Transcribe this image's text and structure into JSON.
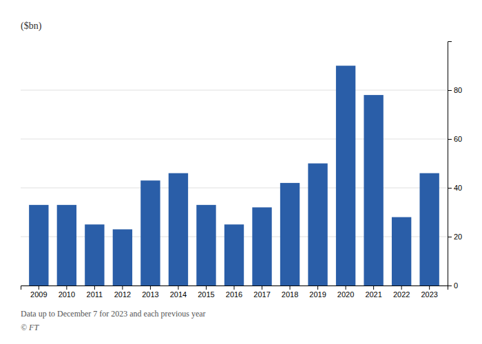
{
  "chart_data": {
    "type": "bar",
    "ylabel": "($bn)",
    "categories": [
      "2009",
      "2010",
      "2011",
      "2012",
      "2013",
      "2014",
      "2015",
      "2016",
      "2017",
      "2018",
      "2019",
      "2020",
      "2021",
      "2022",
      "2023"
    ],
    "values": [
      33,
      33,
      25,
      23,
      43,
      46,
      33,
      25,
      32,
      42,
      50,
      90,
      78,
      28,
      46
    ],
    "color": "#2a5ea8",
    "ylim": [
      0,
      100
    ],
    "yticks": [
      0,
      20,
      40,
      60,
      80
    ],
    "grid": true,
    "annotations": [
      "Data up to December 7 for 2023 and each previous year",
      "© FT"
    ]
  }
}
